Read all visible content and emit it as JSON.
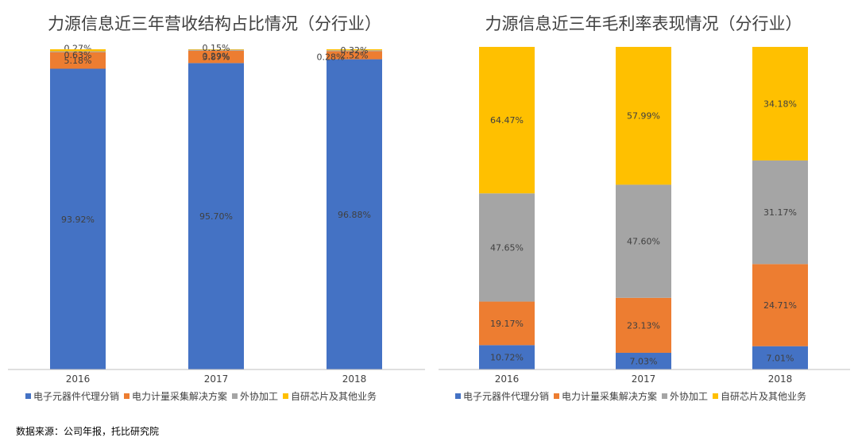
{
  "chart_data": [
    {
      "type": "bar",
      "stacked": true,
      "title": "力源信息近三年营收结构占比情况（分行业）",
      "categories": [
        "2016",
        "2017",
        "2018"
      ],
      "series": [
        {
          "name": "电子元器件代理分销",
          "color": "#4472C4",
          "values": [
            93.92,
            95.7,
            96.88
          ],
          "labels": [
            "93.92%",
            "95.70%",
            "96.88%"
          ]
        },
        {
          "name": "电力计量采集解决方案",
          "color": "#ED7D31",
          "values": [
            5.18,
            3.87,
            2.52
          ],
          "labels": [
            "5.18%",
            "3.87%",
            "2.52%"
          ]
        },
        {
          "name": "外协加工",
          "color": "#A5A5A5",
          "values": [
            0.27,
            0.29,
            0.28
          ],
          "labels": [
            "0.27%",
            "0.29%",
            "0.28%"
          ]
        },
        {
          "name": "自研芯片及其他业务",
          "color": "#FFC000",
          "values": [
            0.63,
            0.15,
            0.32
          ],
          "labels": [
            "0.63%",
            "0.15%",
            "0.32%"
          ]
        }
      ],
      "legend_position": "bottom",
      "grid": false
    },
    {
      "type": "bar",
      "stacked": true,
      "title": "力源信息近三年毛利率表现情况（分行业）",
      "categories": [
        "2016",
        "2017",
        "2018"
      ],
      "series": [
        {
          "name": "电子元器件代理分销",
          "color": "#4472C4",
          "values": [
            10.72,
            7.03,
            7.01
          ],
          "labels": [
            "10.72%",
            "7.03%",
            "7.01%"
          ]
        },
        {
          "name": "电力计量采集解决方案",
          "color": "#ED7D31",
          "values": [
            19.17,
            23.13,
            24.71
          ],
          "labels": [
            "19.17%",
            "23.13%",
            "24.71%"
          ]
        },
        {
          "name": "外协加工",
          "color": "#A5A5A5",
          "values": [
            47.65,
            47.6,
            31.17
          ],
          "labels": [
            "47.65%",
            "47.60%",
            "31.17%"
          ]
        },
        {
          "name": "自研芯片及其他业务",
          "color": "#FFC000",
          "values": [
            64.47,
            57.99,
            34.18
          ],
          "labels": [
            "64.47%",
            "57.99%",
            "34.18%"
          ]
        }
      ],
      "legend_position": "bottom",
      "grid": false
    }
  ],
  "source_note": "数据来源：公司年报，托比研究院"
}
